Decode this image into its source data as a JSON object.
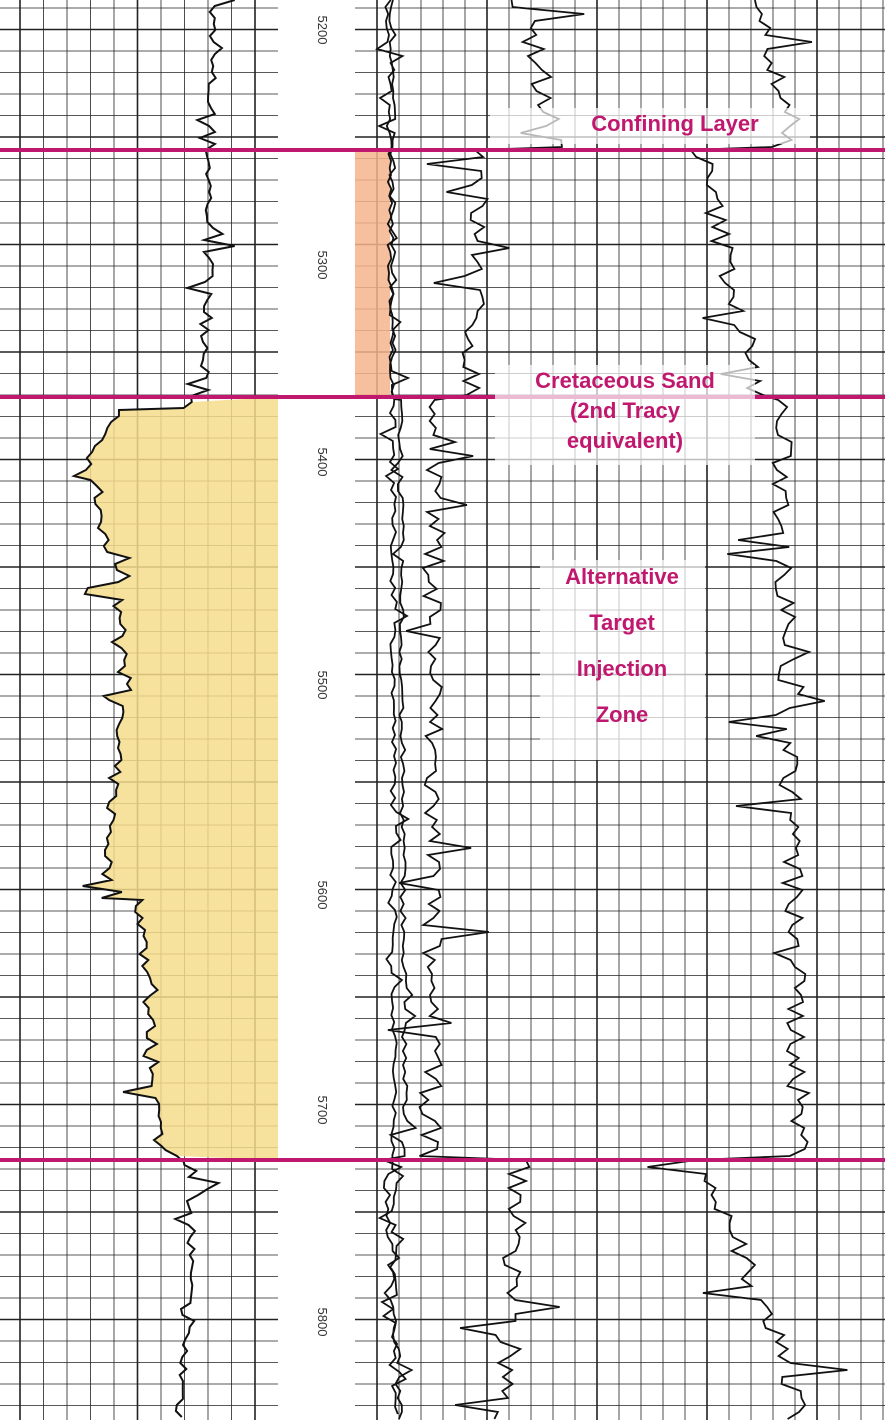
{
  "depth_labels": [
    "5200",
    "5300",
    "5400",
    "5500",
    "5600",
    "5700",
    "5800"
  ],
  "annotations": [
    {
      "lines": [
        "Confining Layer"
      ]
    },
    {
      "lines": [
        "Cretaceous Sand",
        "(2nd Tracy",
        "equivalent)"
      ]
    },
    {
      "lines": [
        "Alternative",
        "Target",
        "Injection",
        "Zone"
      ]
    }
  ]
}
